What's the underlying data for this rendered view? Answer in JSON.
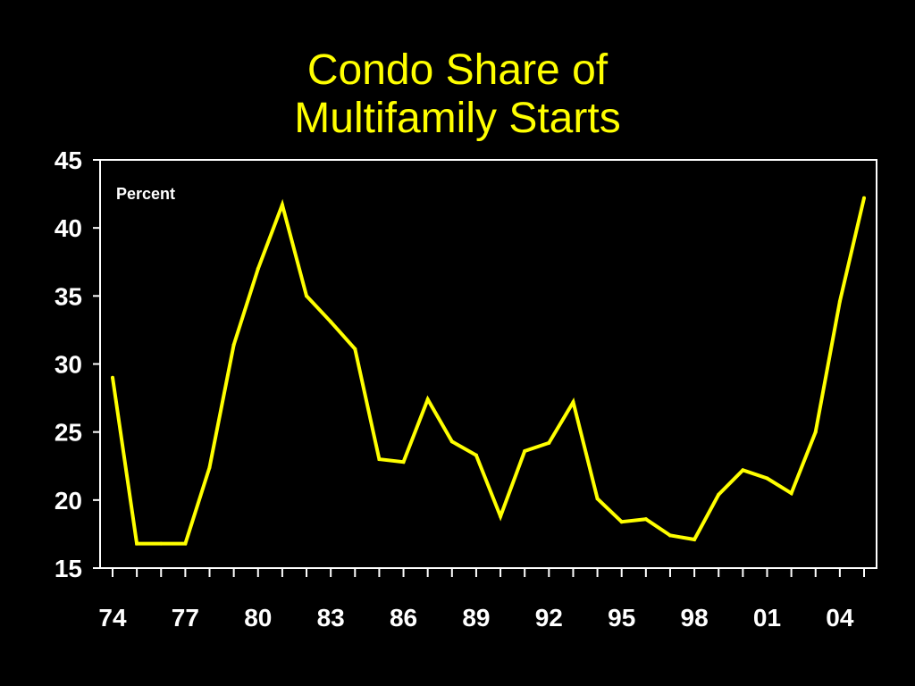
{
  "title_lines": [
    "Condo Share of",
    "Multifamily Starts"
  ],
  "colors": {
    "background": "#000000",
    "line": "#ffff00",
    "axis": "#ffffff",
    "text": "#ffffff",
    "title": "#ffff00"
  },
  "chart_data": {
    "type": "line",
    "title": "Condo Share of Multifamily Starts",
    "unit_label": "Percent",
    "xlabel": "",
    "ylabel": "",
    "ylim": [
      15,
      45
    ],
    "xlim": [
      1974,
      2005
    ],
    "yticks": [
      15,
      20,
      25,
      30,
      35,
      40,
      45
    ],
    "xtick_labels": [
      "74",
      "77",
      "80",
      "83",
      "86",
      "89",
      "92",
      "95",
      "98",
      "01",
      "04"
    ],
    "xtick_years": [
      1974,
      1977,
      1980,
      1983,
      1986,
      1989,
      1992,
      1995,
      1998,
      2001,
      2004
    ],
    "grid": false,
    "series": [
      {
        "x": [
          1974,
          1975,
          1976,
          1977,
          1978,
          1979,
          1980,
          1981,
          1982,
          1983,
          1984,
          1985,
          1986,
          1987,
          1988,
          1989,
          1990,
          1991,
          1992,
          1993,
          1994,
          1995,
          1996,
          1997,
          1998,
          1999,
          2000,
          2001,
          2002,
          2003,
          2004,
          2005
        ],
        "values": [
          29.0,
          16.8,
          16.8,
          16.8,
          22.4,
          31.4,
          37.0,
          41.7,
          35.0,
          33.1,
          31.1,
          23.0,
          22.8,
          27.4,
          24.3,
          23.3,
          18.8,
          23.6,
          24.2,
          27.2,
          20.1,
          18.4,
          18.6,
          17.4,
          17.1,
          20.4,
          22.2,
          21.6,
          20.5,
          25.0,
          34.6,
          42.2
        ]
      }
    ]
  }
}
